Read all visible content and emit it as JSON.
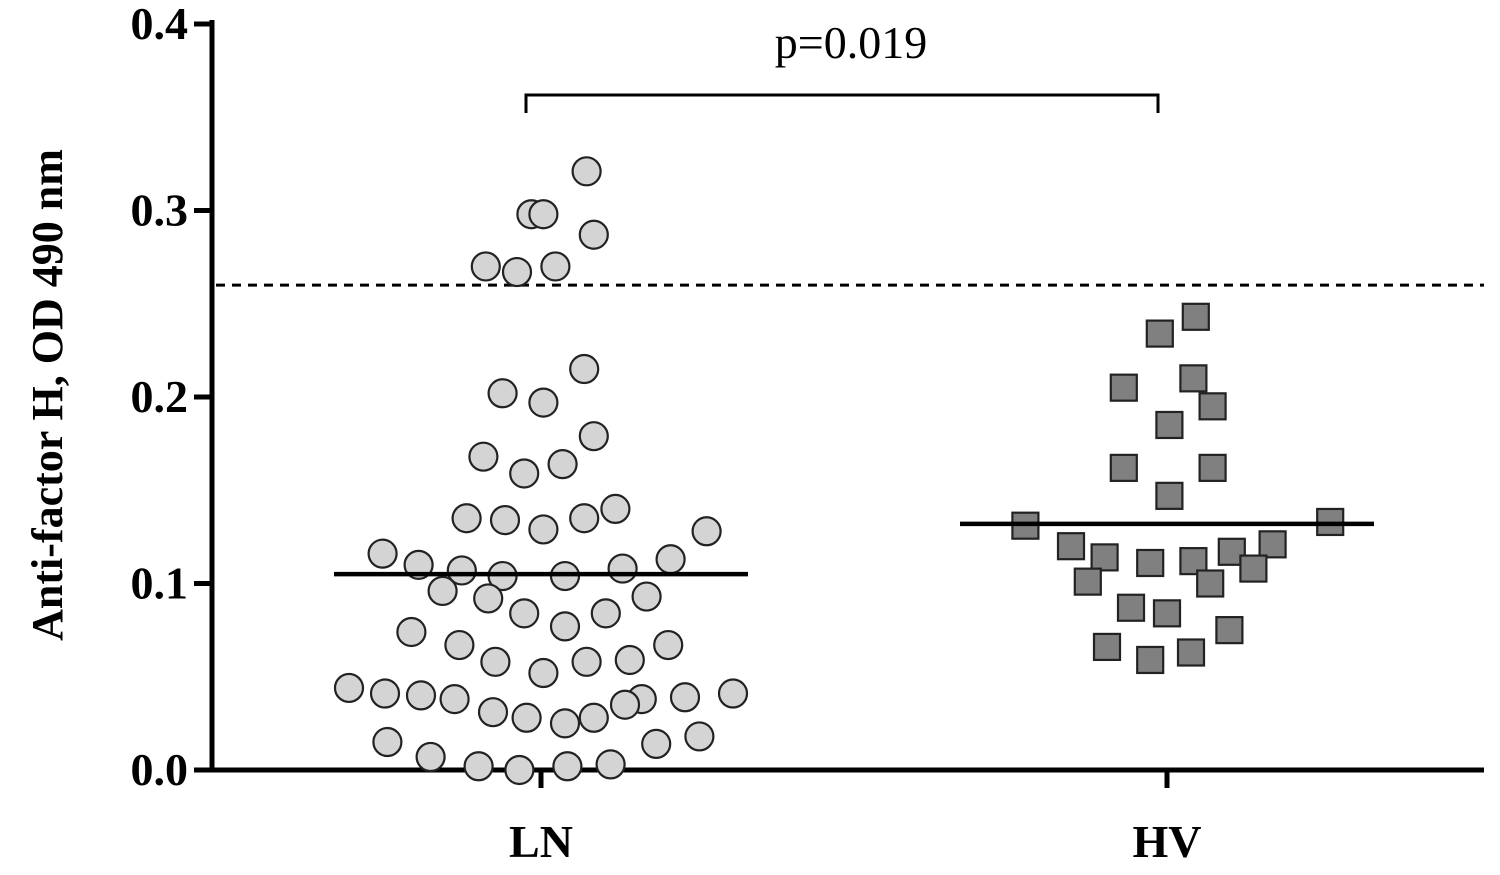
{
  "chart_data": {
    "type": "scatter",
    "ylabel": "Anti-factor H, OD 490 nm",
    "ylim": [
      0,
      0.4
    ],
    "yticks": [
      "0.0",
      "0.1",
      "0.2",
      "0.3",
      "0.4"
    ],
    "categories": [
      "LN",
      "HV"
    ],
    "cutoff": 0.26,
    "annotation": "p=0.019",
    "colors": {
      "LN": "#d4d4d4",
      "HV": "#808080",
      "marker_edge": "#222222"
    },
    "series": [
      {
        "category": "LN",
        "marker": "circle",
        "mean": 0.105,
        "points": [
          {
            "x": 0.19,
            "y": 0.321
          },
          {
            "x": -0.04,
            "y": 0.298
          },
          {
            "x": 0.01,
            "y": 0.298
          },
          {
            "x": 0.22,
            "y": 0.287
          },
          {
            "x": -0.23,
            "y": 0.27
          },
          {
            "x": 0.06,
            "y": 0.27
          },
          {
            "x": -0.1,
            "y": 0.267
          },
          {
            "x": 0.18,
            "y": 0.215
          },
          {
            "x": -0.16,
            "y": 0.202
          },
          {
            "x": 0.01,
            "y": 0.197
          },
          {
            "x": 0.22,
            "y": 0.179
          },
          {
            "x": -0.24,
            "y": 0.168
          },
          {
            "x": 0.09,
            "y": 0.164
          },
          {
            "x": -0.07,
            "y": 0.159
          },
          {
            "x": 0.31,
            "y": 0.14
          },
          {
            "x": -0.31,
            "y": 0.135
          },
          {
            "x": -0.15,
            "y": 0.134
          },
          {
            "x": 0.18,
            "y": 0.135
          },
          {
            "x": 0.01,
            "y": 0.129
          },
          {
            "x": 0.69,
            "y": 0.128
          },
          {
            "x": -0.66,
            "y": 0.116
          },
          {
            "x": -0.51,
            "y": 0.11
          },
          {
            "x": -0.33,
            "y": 0.107
          },
          {
            "x": 0.34,
            "y": 0.108
          },
          {
            "x": 0.54,
            "y": 0.113
          },
          {
            "x": -0.16,
            "y": 0.104
          },
          {
            "x": 0.1,
            "y": 0.104
          },
          {
            "x": -0.41,
            "y": 0.096
          },
          {
            "x": -0.22,
            "y": 0.092
          },
          {
            "x": 0.44,
            "y": 0.093
          },
          {
            "x": -0.07,
            "y": 0.084
          },
          {
            "x": 0.27,
            "y": 0.084
          },
          {
            "x": 0.1,
            "y": 0.077
          },
          {
            "x": -0.54,
            "y": 0.074
          },
          {
            "x": -0.34,
            "y": 0.067
          },
          {
            "x": 0.53,
            "y": 0.067
          },
          {
            "x": -0.19,
            "y": 0.058
          },
          {
            "x": 0.19,
            "y": 0.058
          },
          {
            "x": 0.37,
            "y": 0.059
          },
          {
            "x": 0.01,
            "y": 0.052
          },
          {
            "x": -0.8,
            "y": 0.044
          },
          {
            "x": -0.65,
            "y": 0.041
          },
          {
            "x": -0.5,
            "y": 0.04
          },
          {
            "x": -0.36,
            "y": 0.038
          },
          {
            "x": 0.42,
            "y": 0.038
          },
          {
            "x": 0.6,
            "y": 0.039
          },
          {
            "x": 0.8,
            "y": 0.041
          },
          {
            "x": -0.2,
            "y": 0.031
          },
          {
            "x": -0.06,
            "y": 0.028
          },
          {
            "x": 0.1,
            "y": 0.025
          },
          {
            "x": 0.22,
            "y": 0.028
          },
          {
            "x": 0.35,
            "y": 0.035
          },
          {
            "x": -0.64,
            "y": 0.015
          },
          {
            "x": 0.48,
            "y": 0.014
          },
          {
            "x": 0.66,
            "y": 0.018
          },
          {
            "x": -0.46,
            "y": 0.007
          },
          {
            "x": -0.26,
            "y": 0.002
          },
          {
            "x": -0.09,
            "y": 0.0
          },
          {
            "x": 0.11,
            "y": 0.002
          },
          {
            "x": 0.29,
            "y": 0.003
          }
        ]
      },
      {
        "category": "HV",
        "marker": "square",
        "mean": 0.132,
        "points": [
          {
            "x": 0.12,
            "y": 0.243
          },
          {
            "x": -0.03,
            "y": 0.234
          },
          {
            "x": 0.11,
            "y": 0.21
          },
          {
            "x": -0.18,
            "y": 0.205
          },
          {
            "x": 0.19,
            "y": 0.195
          },
          {
            "x": 0.01,
            "y": 0.185
          },
          {
            "x": -0.18,
            "y": 0.162
          },
          {
            "x": 0.19,
            "y": 0.162
          },
          {
            "x": 0.01,
            "y": 0.147
          },
          {
            "x": -0.59,
            "y": 0.131
          },
          {
            "x": 0.68,
            "y": 0.133
          },
          {
            "x": -0.4,
            "y": 0.12
          },
          {
            "x": 0.44,
            "y": 0.121
          },
          {
            "x": -0.26,
            "y": 0.114
          },
          {
            "x": 0.27,
            "y": 0.117
          },
          {
            "x": -0.07,
            "y": 0.111
          },
          {
            "x": 0.11,
            "y": 0.112
          },
          {
            "x": 0.36,
            "y": 0.108
          },
          {
            "x": -0.33,
            "y": 0.101
          },
          {
            "x": 0.18,
            "y": 0.1
          },
          {
            "x": -0.15,
            "y": 0.087
          },
          {
            "x": 0.0,
            "y": 0.084
          },
          {
            "x": 0.26,
            "y": 0.075
          },
          {
            "x": -0.25,
            "y": 0.066
          },
          {
            "x": 0.1,
            "y": 0.063
          },
          {
            "x": -0.07,
            "y": 0.059
          }
        ]
      }
    ]
  }
}
